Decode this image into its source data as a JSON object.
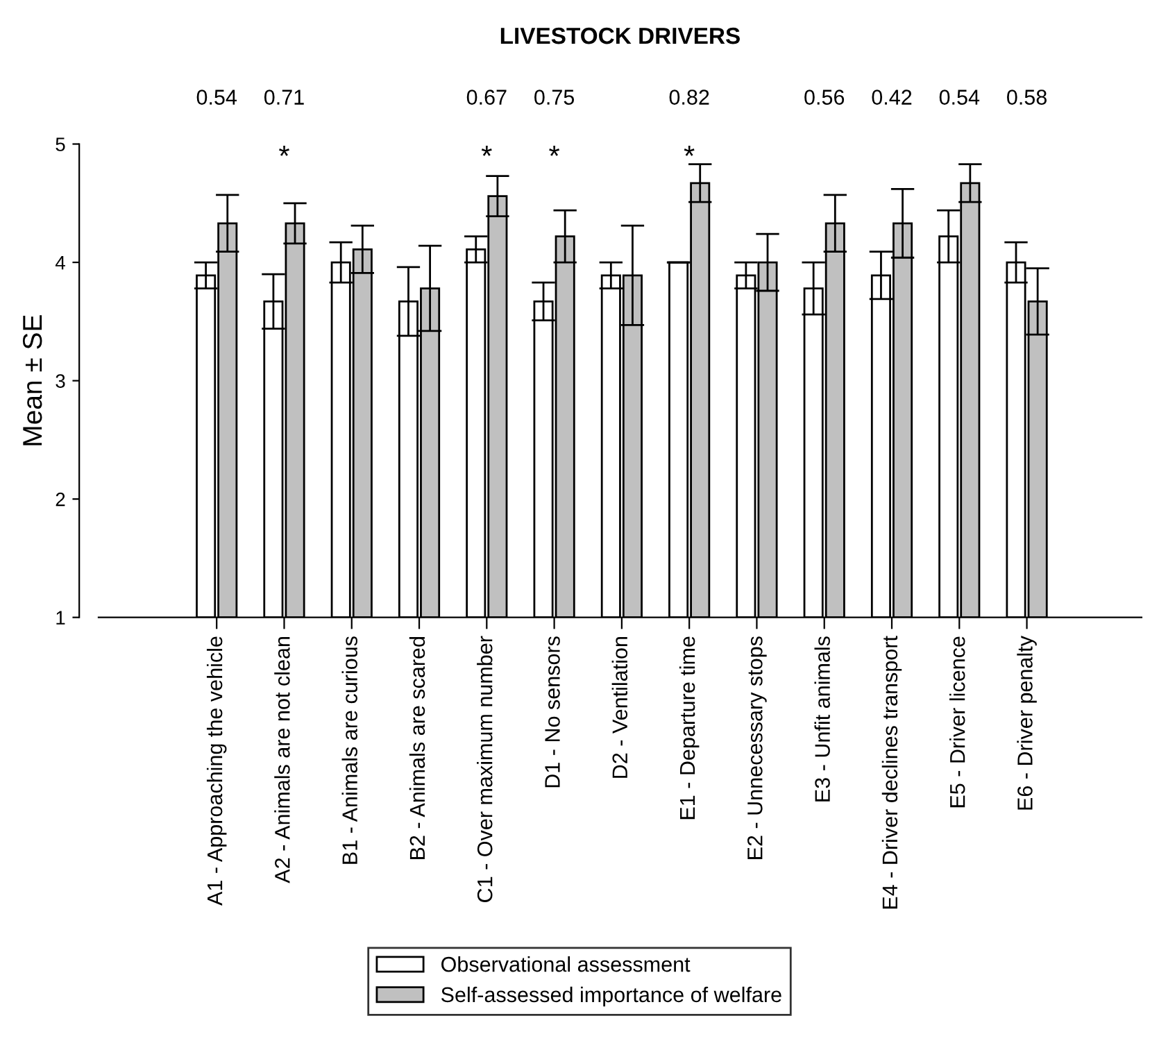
{
  "chart_data": {
    "type": "bar",
    "title": "LIVESTOCK DRIVERS",
    "ylabel": "Mean ± SE",
    "categories": [
      "A1 - Approaching the vehicle",
      "A2 - Animals are not clean",
      "B1 - Animals are curious",
      "B2 - Animals are scared",
      "C1 - Over maximum number",
      "D1 - No sensors",
      "D2 - Ventilation",
      "E1 - Departure time",
      "E2 - Unnecessary stops",
      "E3 - Unfit animals",
      "E4 - Driver declines transport",
      "E5 - Driver licence",
      "E6 - Driver penalty"
    ],
    "series": [
      {
        "name": "Observational assessment",
        "color": "#ffffff",
        "values": [
          3.89,
          3.67,
          4.0,
          3.67,
          4.11,
          3.67,
          3.89,
          4.0,
          3.89,
          3.78,
          3.89,
          4.22,
          4.0
        ],
        "errors": [
          0.11,
          0.23,
          0.17,
          0.29,
          0.11,
          0.16,
          0.11,
          0,
          0.11,
          0.22,
          0.2,
          0.22,
          0.17
        ]
      },
      {
        "name": "Self-assessed importance of welfare",
        "color": "#c0c0c0",
        "values": [
          4.33,
          4.33,
          4.11,
          3.78,
          4.56,
          4.22,
          3.89,
          4.67,
          4.0,
          4.33,
          4.33,
          4.67,
          3.67
        ],
        "errors": [
          0.24,
          0.17,
          0.2,
          0.36,
          0.17,
          0.22,
          0.42,
          0.16,
          0.24,
          0.24,
          0.29,
          0.16,
          0.28
        ]
      }
    ],
    "ylim": [
      1,
      5
    ],
    "yticks": [
      1,
      2,
      3,
      4,
      5
    ],
    "grid": false,
    "legend": "bottom",
    "annotations": [
      "0.54",
      "0.71",
      "0.67",
      "0.75",
      "0.82",
      "0.56",
      "0.42",
      "0.54",
      "0.58",
      "*",
      "*",
      "*",
      "*"
    ]
  }
}
